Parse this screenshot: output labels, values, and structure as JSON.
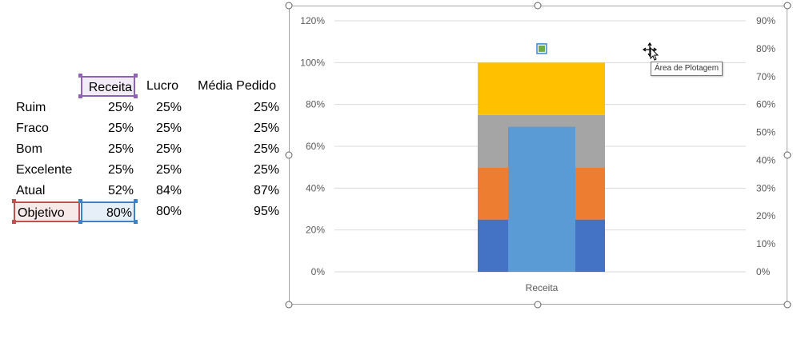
{
  "sheet": {
    "headers": {
      "receita": "Receita",
      "lucro": "Lucro",
      "media_pedido": "Média Pedido"
    },
    "rows": [
      {
        "label": "Ruim",
        "receita": "25%",
        "lucro": "25%",
        "media_pedido": "25%"
      },
      {
        "label": "Fraco",
        "receita": "25%",
        "lucro": "25%",
        "media_pedido": "25%"
      },
      {
        "label": "Bom",
        "receita": "25%",
        "lucro": "25%",
        "media_pedido": "25%"
      },
      {
        "label": "Excelente",
        "receita": "25%",
        "lucro": "25%",
        "media_pedido": "25%"
      },
      {
        "label": "Atual",
        "receita": "52%",
        "lucro": "84%",
        "media_pedido": "87%"
      },
      {
        "label": "Objetivo",
        "receita": "80%",
        "lucro": "80%",
        "media_pedido": "95%"
      }
    ]
  },
  "chart_data": {
    "type": "bar",
    "categories": [
      "Receita"
    ],
    "left_axis": {
      "ylim": [
        0,
        120
      ],
      "ticks": [
        "0%",
        "20%",
        "40%",
        "60%",
        "80%",
        "100%",
        "120%"
      ]
    },
    "right_axis": {
      "ylim": [
        0,
        90
      ],
      "ticks": [
        "0%",
        "10%",
        "20%",
        "30%",
        "40%",
        "50%",
        "60%",
        "70%",
        "80%",
        "90%"
      ]
    },
    "stacked_series": [
      {
        "name": "Ruim",
        "values": [
          25
        ],
        "color": "#4472c4"
      },
      {
        "name": "Fraco",
        "values": [
          25
        ],
        "color": "#ed7d31"
      },
      {
        "name": "Bom",
        "values": [
          25
        ],
        "color": "#a5a5a5"
      },
      {
        "name": "Excelente",
        "values": [
          25
        ],
        "color": "#ffc000"
      }
    ],
    "secondary_series": [
      {
        "name": "Atual",
        "values": [
          52
        ],
        "color": "#5b9bd5",
        "axis": "right"
      }
    ],
    "marker_series": [
      {
        "name": "Objetivo",
        "values": [
          80
        ],
        "color": "#70ad47",
        "axis": "right"
      }
    ],
    "grid": true,
    "legend": "none"
  },
  "chart_ui": {
    "tooltip": "Área de Plotagem",
    "move_cursor": "move-cursor-icon"
  }
}
